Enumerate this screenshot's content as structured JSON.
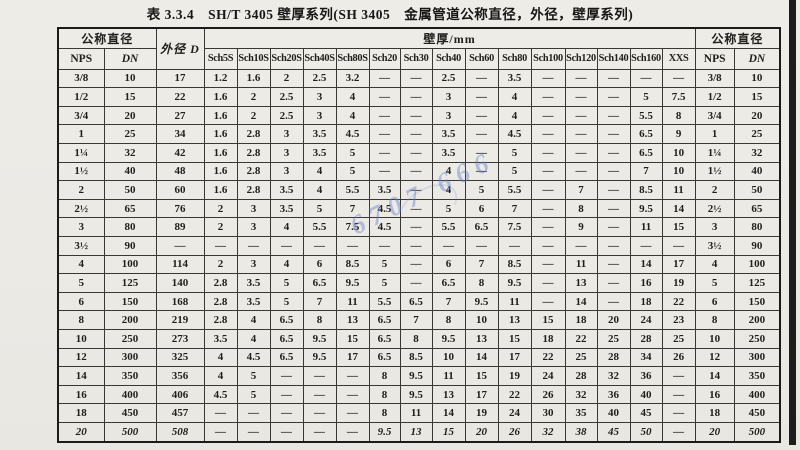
{
  "page": {
    "title": "表 3.3.4　SH/T 3405 壁厚系列(SH 3405　金属管道公称直径，外径，壁厚系列)"
  },
  "watermark": {
    "text": "6707 666",
    "color": "#6079c9"
  },
  "table": {
    "headers": {
      "nominal_diameter_left": "公称直径",
      "nominal_diameter_right": "公称直径",
      "outer_diameter": "外径 D",
      "wall_thickness_group": "壁厚/mm",
      "nps_left": "NPS",
      "dn_left": "DN",
      "nps_right": "NPS",
      "dn_right": "DN",
      "sch_columns": [
        "Sch5S",
        "Sch10S",
        "Sch20S",
        "Sch40S",
        "Sch80S",
        "Sch20",
        "Sch30",
        "Sch40",
        "Sch60",
        "Sch80",
        "Sch100",
        "Sch120",
        "Sch140",
        "Sch160",
        "XXS"
      ]
    },
    "rows": [
      {
        "nps": "3/8",
        "dn": "10",
        "od": "17",
        "t": [
          "1.2",
          "1.6",
          "2",
          "2.5",
          "3.2",
          "—",
          "—",
          "2.5",
          "—",
          "3.5",
          "—",
          "—",
          "—",
          "—",
          "—"
        ]
      },
      {
        "nps": "1/2",
        "dn": "15",
        "od": "22",
        "t": [
          "1.6",
          "2",
          "2.5",
          "3",
          "4",
          "—",
          "—",
          "3",
          "—",
          "4",
          "—",
          "—",
          "—",
          "5",
          "7.5"
        ]
      },
      {
        "nps": "3/4",
        "dn": "20",
        "od": "27",
        "t": [
          "1.6",
          "2",
          "2.5",
          "3",
          "4",
          "—",
          "—",
          "3",
          "—",
          "4",
          "—",
          "—",
          "—",
          "5.5",
          "8"
        ]
      },
      {
        "nps": "1",
        "dn": "25",
        "od": "34",
        "t": [
          "1.6",
          "2.8",
          "3",
          "3.5",
          "4.5",
          "—",
          "—",
          "3.5",
          "—",
          "4.5",
          "—",
          "—",
          "—",
          "6.5",
          "9"
        ]
      },
      {
        "nps": "1¼",
        "dn": "32",
        "od": "42",
        "t": [
          "1.6",
          "2.8",
          "3",
          "3.5",
          "5",
          "—",
          "—",
          "3.5",
          "—",
          "5",
          "—",
          "—",
          "—",
          "6.5",
          "10"
        ]
      },
      {
        "nps": "1½",
        "dn": "40",
        "od": "48",
        "t": [
          "1.6",
          "2.8",
          "3",
          "4",
          "5",
          "—",
          "—",
          "4",
          "—",
          "5",
          "—",
          "—",
          "—",
          "7",
          "10"
        ]
      },
      {
        "nps": "2",
        "dn": "50",
        "od": "60",
        "t": [
          "1.6",
          "2.8",
          "3.5",
          "4",
          "5.5",
          "3.5",
          "—",
          "4",
          "5",
          "5.5",
          "—",
          "7",
          "—",
          "8.5",
          "11"
        ]
      },
      {
        "nps": "2½",
        "dn": "65",
        "od": "76",
        "t": [
          "2",
          "3",
          "3.5",
          "5",
          "7",
          "4.5",
          "—",
          "5",
          "6",
          "7",
          "—",
          "8",
          "—",
          "9.5",
          "14"
        ]
      },
      {
        "nps": "3",
        "dn": "80",
        "od": "89",
        "t": [
          "2",
          "3",
          "4",
          "5.5",
          "7.5",
          "4.5",
          "—",
          "5.5",
          "6.5",
          "7.5",
          "—",
          "9",
          "—",
          "11",
          "15"
        ]
      },
      {
        "nps": "3½",
        "dn": "90",
        "od": "—",
        "t": [
          "—",
          "—",
          "—",
          "—",
          "—",
          "—",
          "—",
          "—",
          "—",
          "—",
          "—",
          "—",
          "—",
          "—",
          "—"
        ]
      },
      {
        "nps": "4",
        "dn": "100",
        "od": "114",
        "t": [
          "2",
          "3",
          "4",
          "6",
          "8.5",
          "5",
          "—",
          "6",
          "7",
          "8.5",
          "—",
          "11",
          "—",
          "14",
          "17"
        ]
      },
      {
        "nps": "5",
        "dn": "125",
        "od": "140",
        "t": [
          "2.8",
          "3.5",
          "5",
          "6.5",
          "9.5",
          "5",
          "—",
          "6.5",
          "8",
          "9.5",
          "—",
          "13",
          "—",
          "16",
          "19"
        ]
      },
      {
        "nps": "6",
        "dn": "150",
        "od": "168",
        "t": [
          "2.8",
          "3.5",
          "5",
          "7",
          "11",
          "5.5",
          "6.5",
          "7",
          "9.5",
          "11",
          "—",
          "14",
          "—",
          "18",
          "22"
        ]
      },
      {
        "nps": "8",
        "dn": "200",
        "od": "219",
        "t": [
          "2.8",
          "4",
          "6.5",
          "8",
          "13",
          "6.5",
          "7",
          "8",
          "10",
          "13",
          "15",
          "18",
          "20",
          "24",
          "23"
        ]
      },
      {
        "nps": "10",
        "dn": "250",
        "od": "273",
        "t": [
          "3.5",
          "4",
          "6.5",
          "9.5",
          "15",
          "6.5",
          "8",
          "9.5",
          "13",
          "15",
          "18",
          "22",
          "25",
          "28",
          "25"
        ]
      },
      {
        "nps": "12",
        "dn": "300",
        "od": "325",
        "t": [
          "4",
          "4.5",
          "6.5",
          "9.5",
          "17",
          "6.5",
          "8.5",
          "10",
          "14",
          "17",
          "22",
          "25",
          "28",
          "34",
          "26"
        ]
      },
      {
        "nps": "14",
        "dn": "350",
        "od": "356",
        "t": [
          "4",
          "5",
          "—",
          "—",
          "—",
          "8",
          "9.5",
          "11",
          "15",
          "19",
          "24",
          "28",
          "32",
          "36",
          "—"
        ]
      },
      {
        "nps": "16",
        "dn": "400",
        "od": "406",
        "t": [
          "4.5",
          "5",
          "—",
          "—",
          "—",
          "8",
          "9.5",
          "13",
          "17",
          "22",
          "26",
          "32",
          "36",
          "40",
          "—"
        ]
      },
      {
        "nps": "18",
        "dn": "450",
        "od": "457",
        "t": [
          "—",
          "—",
          "—",
          "—",
          "—",
          "8",
          "11",
          "14",
          "19",
          "24",
          "30",
          "35",
          "40",
          "45",
          "—"
        ]
      },
      {
        "nps": "20",
        "dn": "500",
        "od": "508",
        "t": [
          "—",
          "—",
          "—",
          "—",
          "—",
          "9.5",
          "13",
          "15",
          "20",
          "26",
          "32",
          "38",
          "45",
          "50",
          "—"
        ]
      }
    ]
  }
}
